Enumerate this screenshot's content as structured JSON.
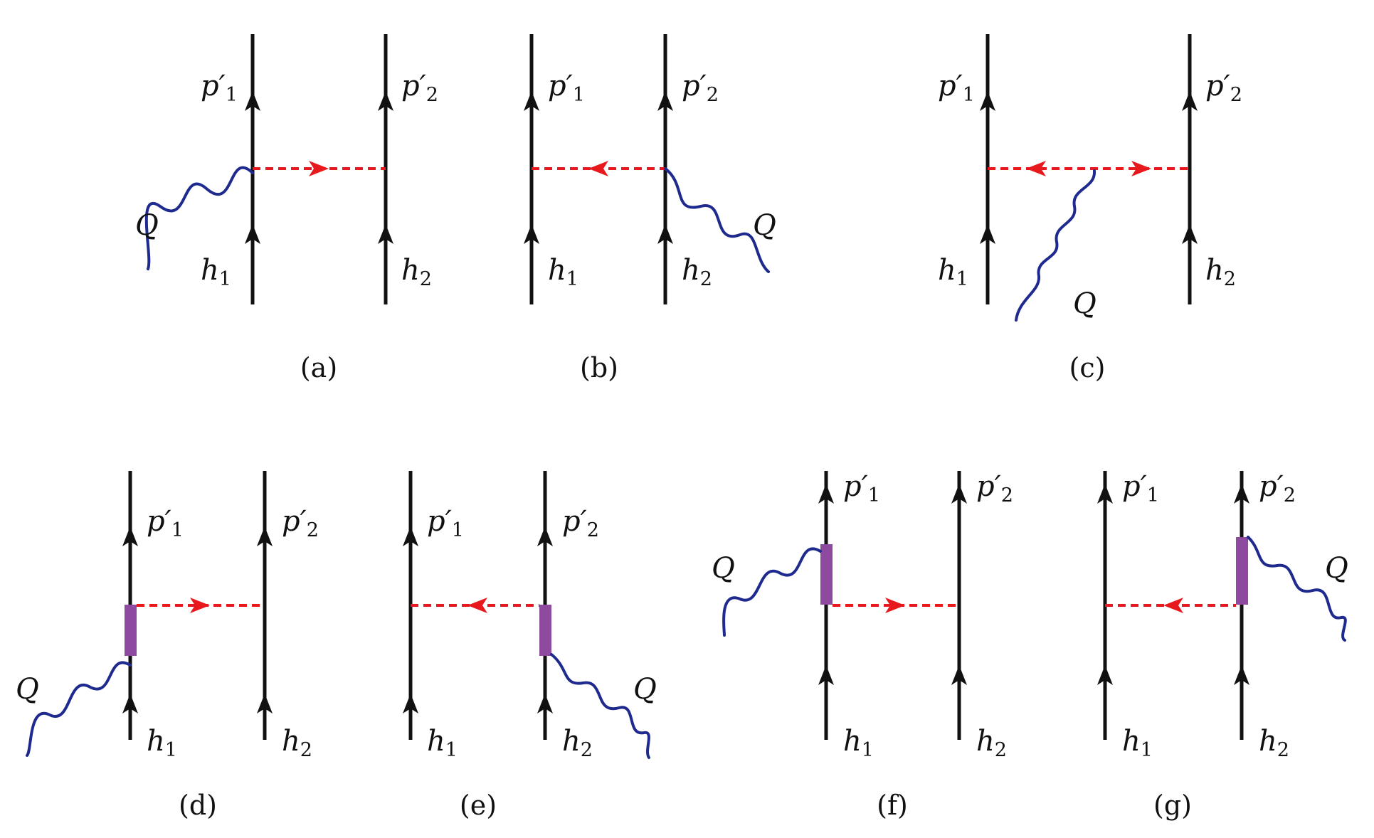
{
  "colors": {
    "fermion": "#111111",
    "pion": "#e8191c",
    "photon": "#1f2a8f",
    "vertex": "#8e4a9e",
    "background": "#ffffff"
  },
  "labels": {
    "p": "p",
    "prime": "′",
    "h": "h",
    "one": "1",
    "two": "2",
    "Q": "Q"
  },
  "diagrams": [
    {
      "caption": "(a)",
      "emitter": "left",
      "photon_vertex": "point",
      "photon_side": "left"
    },
    {
      "caption": "(b)",
      "emitter": "right",
      "photon_vertex": "point",
      "photon_side": "right"
    },
    {
      "caption": "(c)",
      "emitter": "pion",
      "photon_vertex": "pion-line",
      "photon_side": "below"
    },
    {
      "caption": "(d)",
      "emitter": "left",
      "photon_vertex": "blob",
      "photon_side": "left"
    },
    {
      "caption": "(e)",
      "emitter": "right",
      "photon_vertex": "blob",
      "photon_side": "right"
    },
    {
      "caption": "(f)",
      "emitter": "left",
      "photon_vertex": "blob",
      "photon_side": "left"
    },
    {
      "caption": "(g)",
      "emitter": "right",
      "photon_vertex": "blob",
      "photon_side": "right"
    }
  ]
}
